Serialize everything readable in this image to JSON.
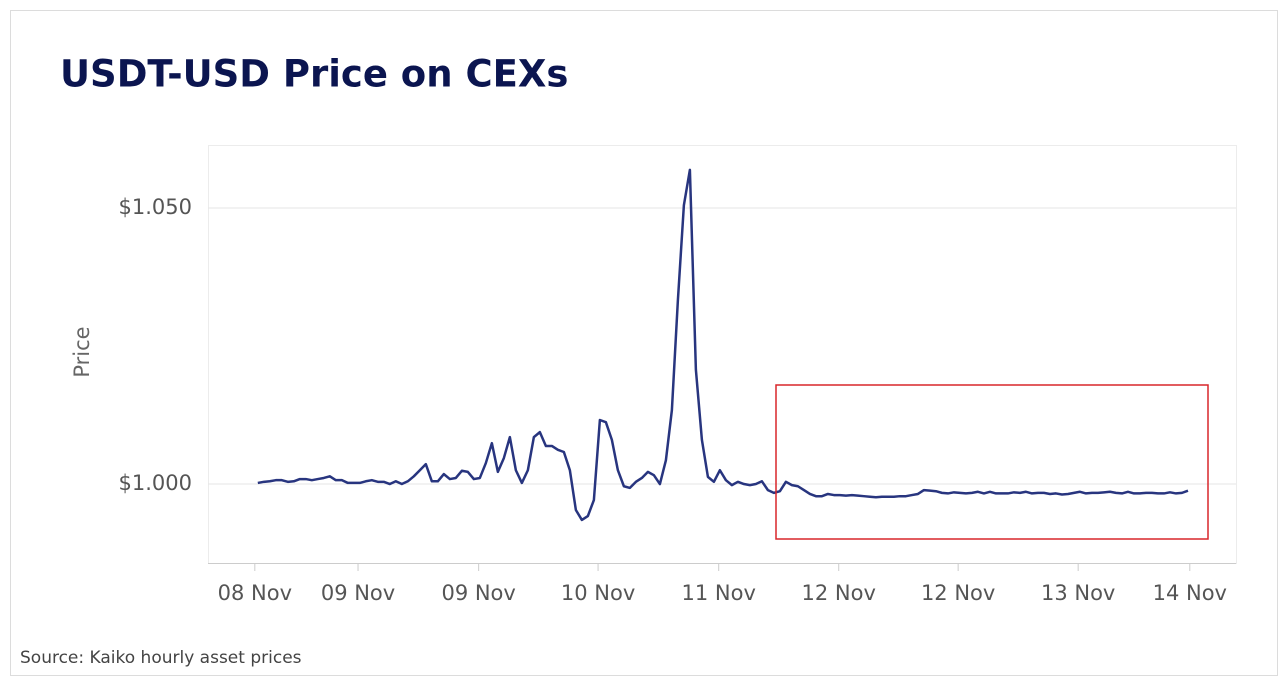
{
  "chart_data": {
    "type": "line",
    "title": "USDT-USD Price on CEXs",
    "y_label": "Price",
    "source": "Source: Kaiko hourly asset prices",
    "color": "#28357f",
    "grid": true,
    "values": [
      1.0002,
      1.0004,
      1.0005,
      1.0007,
      1.0007,
      1.0004,
      1.0005,
      1.0009,
      1.0009,
      1.0007,
      1.0009,
      1.0011,
      1.0014,
      1.0007,
      1.0007,
      1.0002,
      1.0002,
      1.0002,
      1.0005,
      1.0007,
      1.0004,
      1.0004,
      1.0,
      1.0005,
      1.0,
      1.0005,
      1.0014,
      1.0025,
      1.0036,
      1.0005,
      1.0005,
      1.0018,
      1.0009,
      1.0011,
      1.0024,
      1.0022,
      1.0009,
      1.0011,
      1.0038,
      1.0074,
      1.0022,
      1.0047,
      1.0085,
      1.0025,
      1.0002,
      1.0025,
      1.0085,
      1.0094,
      1.0069,
      1.0069,
      1.0062,
      1.0058,
      1.0025,
      0.9953,
      0.9935,
      0.9942,
      0.9971,
      1.0116,
      1.0112,
      1.008,
      1.0025,
      0.9996,
      0.9993,
      1.0004,
      1.0011,
      1.0022,
      1.0016,
      1.0,
      1.0043,
      1.0134,
      1.0333,
      1.0505,
      1.0569,
      1.0207,
      1.008,
      1.0013,
      1.0004,
      1.0025,
      1.0007,
      0.9998,
      1.0004,
      1.0,
      0.9998,
      1.0,
      1.0005,
      0.9989,
      0.9984,
      0.9987,
      1.0004,
      0.9998,
      0.9996,
      0.9989,
      0.9982,
      0.9978,
      0.9978,
      0.9982,
      0.998,
      0.998,
      0.9979,
      0.998,
      0.9979,
      0.9978,
      0.9977,
      0.9976,
      0.9977,
      0.9977,
      0.9977,
      0.9978,
      0.9978,
      0.998,
      0.9982,
      0.9989,
      0.9988,
      0.9987,
      0.9984,
      0.9983,
      0.9985,
      0.9984,
      0.9983,
      0.9984,
      0.9986,
      0.9983,
      0.9986,
      0.9983,
      0.9983,
      0.9983,
      0.9985,
      0.9984,
      0.9986,
      0.9983,
      0.9984,
      0.9984,
      0.9982,
      0.9983,
      0.9981,
      0.9982,
      0.9984,
      0.9986,
      0.9983,
      0.9984,
      0.9984,
      0.9985,
      0.9986,
      0.9984,
      0.9983,
      0.9986,
      0.9983,
      0.9983,
      0.9984,
      0.9984,
      0.9983,
      0.9983,
      0.9985,
      0.9983,
      0.9984,
      0.9988
    ],
    "xlim": [
      -8.3,
      163
    ],
    "xticks": [
      {
        "value": -0.5,
        "label": "08 Nov"
      },
      {
        "value": 16.7,
        "label": "09 Nov"
      },
      {
        "value": 36.8,
        "label": "09 Nov"
      },
      {
        "value": 56.7,
        "label": "10 Nov"
      },
      {
        "value": 76.8,
        "label": "11 Nov"
      },
      {
        "value": 96.8,
        "label": "12 Nov"
      },
      {
        "value": 116.7,
        "label": "12 Nov"
      },
      {
        "value": 136.7,
        "label": "13 Nov"
      },
      {
        "value": 155.3,
        "label": "14 Nov"
      }
    ],
    "ylim": [
      0.9857,
      1.0614
    ],
    "yticks": [
      {
        "value": 1.0,
        "label": "$1.000"
      },
      {
        "value": 1.05,
        "label": "$1.050"
      }
    ]
  }
}
